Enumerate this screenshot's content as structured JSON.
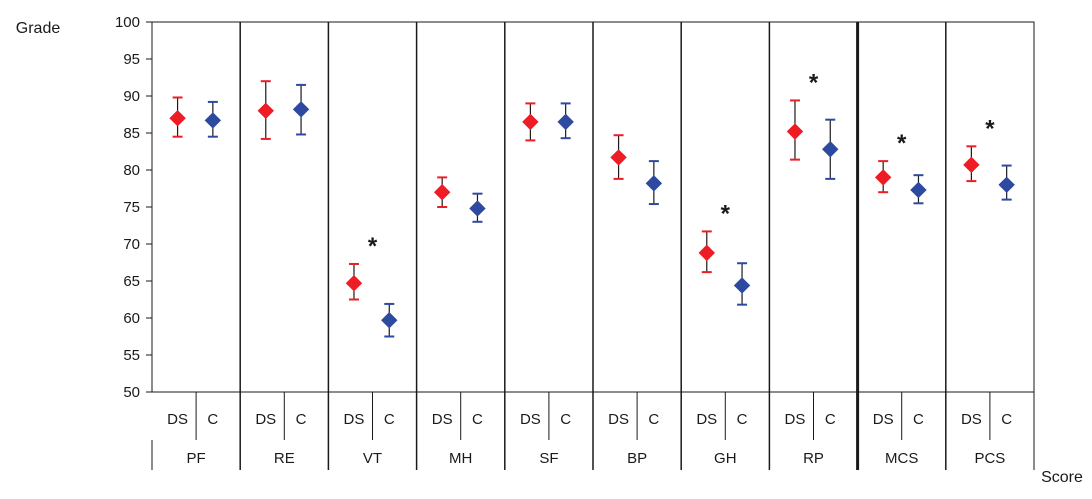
{
  "chart_data": {
    "type": "scatter",
    "ylabel": "Grade",
    "xlabel": "Score",
    "ylim": [
      50,
      100
    ],
    "yticks": [
      50,
      55,
      60,
      65,
      70,
      75,
      80,
      85,
      90,
      95,
      100
    ],
    "subgroups": [
      "DS",
      "C"
    ],
    "grid": false,
    "legend": "none",
    "colors": {
      "DS": "#ee1c25",
      "C": "#2e4aa0"
    },
    "categories": [
      {
        "label": "PF",
        "DS": {
          "mean": 87.0,
          "low": 84.5,
          "high": 89.8
        },
        "C": {
          "mean": 86.7,
          "low": 84.5,
          "high": 89.2
        },
        "sig": false
      },
      {
        "label": "RE",
        "DS": {
          "mean": 88.0,
          "low": 84.2,
          "high": 92.0
        },
        "C": {
          "mean": 88.2,
          "low": 84.8,
          "high": 91.5
        },
        "sig": false
      },
      {
        "label": "VT",
        "DS": {
          "mean": 64.7,
          "low": 62.5,
          "high": 67.3
        },
        "C": {
          "mean": 59.7,
          "low": 57.5,
          "high": 61.9
        },
        "sig": true
      },
      {
        "label": "MH",
        "DS": {
          "mean": 77.0,
          "low": 75.0,
          "high": 79.0
        },
        "C": {
          "mean": 74.8,
          "low": 73.0,
          "high": 76.8
        },
        "sig": false
      },
      {
        "label": "SF",
        "DS": {
          "mean": 86.5,
          "low": 84.0,
          "high": 89.0
        },
        "C": {
          "mean": 86.5,
          "low": 84.3,
          "high": 89.0
        },
        "sig": false
      },
      {
        "label": "BP",
        "DS": {
          "mean": 81.7,
          "low": 78.8,
          "high": 84.7
        },
        "C": {
          "mean": 78.2,
          "low": 75.4,
          "high": 81.2
        },
        "sig": false
      },
      {
        "label": "GH",
        "DS": {
          "mean": 68.8,
          "low": 66.2,
          "high": 71.7
        },
        "C": {
          "mean": 64.4,
          "low": 61.8,
          "high": 67.4
        },
        "sig": true
      },
      {
        "label": "RP",
        "DS": {
          "mean": 85.2,
          "low": 81.4,
          "high": 89.4
        },
        "C": {
          "mean": 82.8,
          "low": 78.8,
          "high": 86.8
        },
        "sig": true
      },
      {
        "label": "MCS",
        "DS": {
          "mean": 79.0,
          "low": 77.0,
          "high": 81.2
        },
        "C": {
          "mean": 77.3,
          "low": 75.5,
          "high": 79.3
        },
        "sig": true
      },
      {
        "label": "PCS",
        "DS": {
          "mean": 80.7,
          "low": 78.5,
          "high": 83.2
        },
        "C": {
          "mean": 78.0,
          "low": 76.0,
          "high": 80.6
        },
        "sig": true
      }
    ],
    "sig_marker": "*"
  }
}
